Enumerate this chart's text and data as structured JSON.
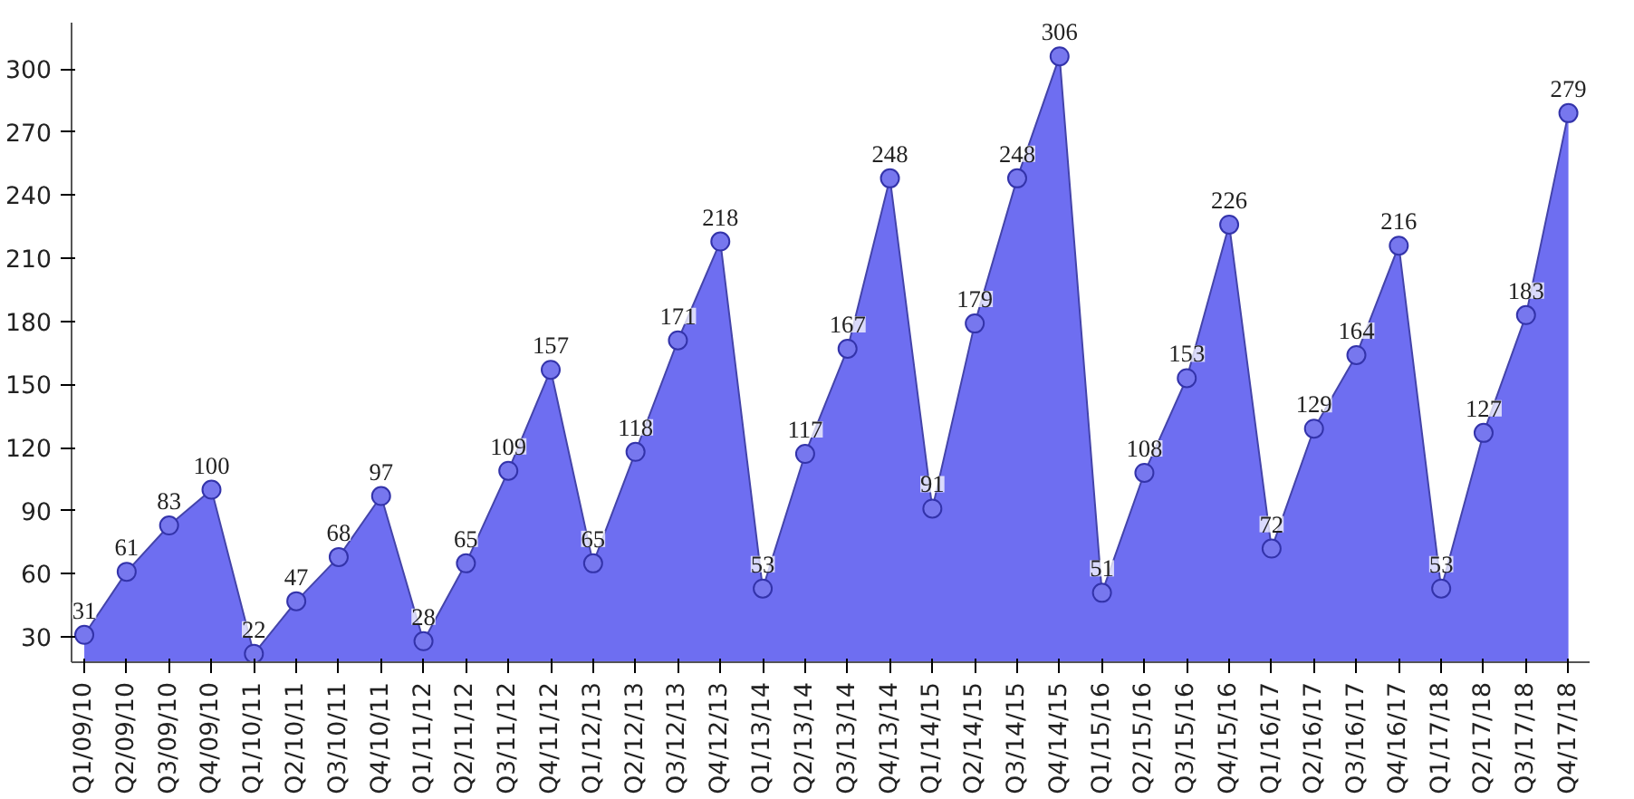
{
  "chart_data": {
    "type": "area",
    "categories": [
      "Q1/09/10",
      "Q2/09/10",
      "Q3/09/10",
      "Q4/09/10",
      "Q1/10/11",
      "Q2/10/11",
      "Q3/10/11",
      "Q4/10/11",
      "Q1/11/12",
      "Q2/11/12",
      "Q3/11/12",
      "Q4/11/12",
      "Q1/12/13",
      "Q2/12/13",
      "Q3/12/13",
      "Q4/12/13",
      "Q1/13/14",
      "Q2/13/14",
      "Q3/13/14",
      "Q4/13/14",
      "Q1/14/15",
      "Q2/14/15",
      "Q3/14/15",
      "Q4/14/15",
      "Q1/15/16",
      "Q2/15/16",
      "Q3/15/16",
      "Q4/15/16",
      "Q1/16/17",
      "Q2/16/17",
      "Q3/16/17",
      "Q4/16/17",
      "Q1/17/18",
      "Q2/17/18",
      "Q3/17/18",
      "Q4/17/18"
    ],
    "series": [
      {
        "color": "#5555ee",
        "values": [
          31,
          61,
          83,
          100,
          22,
          47,
          68,
          97,
          28,
          65,
          109,
          157,
          65,
          118,
          171,
          218,
          53,
          117,
          167,
          248,
          91,
          179,
          248,
          306,
          51,
          108,
          153,
          226,
          72,
          129,
          164,
          216,
          53,
          127,
          183,
          279
        ]
      }
    ],
    "ylim": [
      18,
      322
    ],
    "yticks": [
      30,
      60,
      90,
      120,
      150,
      180,
      210,
      240,
      270,
      300
    ],
    "grid": false,
    "marker": "circle",
    "data_labels": true
  }
}
